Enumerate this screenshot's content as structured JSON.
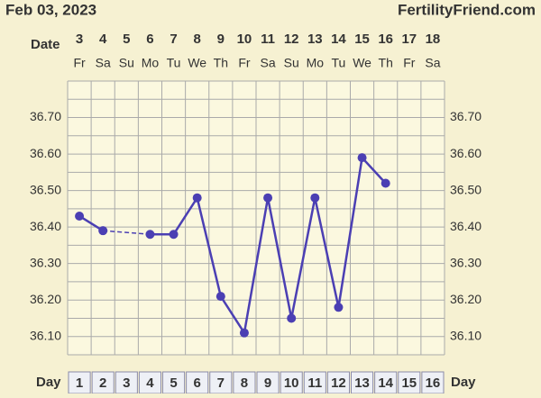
{
  "chart_data": {
    "type": "line",
    "title": "Feb 03, 2023",
    "site": "FertilityFriend.com",
    "date_label": "Date",
    "day_label": "Day",
    "dates": [
      "3",
      "4",
      "5",
      "6",
      "7",
      "8",
      "9",
      "10",
      "11",
      "12",
      "13",
      "14",
      "15",
      "16",
      "17",
      "18"
    ],
    "weekdays": [
      "Fr",
      "Sa",
      "Su",
      "Mo",
      "Tu",
      "We",
      "Th",
      "Fr",
      "Sa",
      "Su",
      "Mo",
      "Tu",
      "We",
      "Th",
      "Fr",
      "Sa"
    ],
    "categories": [
      "1",
      "2",
      "3",
      "4",
      "5",
      "6",
      "7",
      "8",
      "9",
      "10",
      "11",
      "12",
      "13",
      "14",
      "15",
      "16"
    ],
    "series": [
      {
        "color": "#4b3fb3",
        "values": [
          36.43,
          36.39,
          null,
          36.38,
          36.38,
          36.48,
          36.21,
          36.11,
          36.48,
          36.15,
          36.48,
          36.18,
          36.59,
          36.52,
          null,
          null
        ]
      }
    ],
    "ylim": [
      36.05,
      36.8
    ],
    "yticks": [
      {
        "value": 36.1,
        "label": "36.10"
      },
      {
        "value": 36.2,
        "label": "36.20"
      },
      {
        "value": 36.3,
        "label": "36.30"
      },
      {
        "value": 36.4,
        "label": "36.40"
      },
      {
        "value": 36.5,
        "label": "36.50"
      },
      {
        "value": 36.6,
        "label": "36.60"
      },
      {
        "value": 36.7,
        "label": "36.70"
      }
    ],
    "ygrid": [
      36.05,
      36.1,
      36.15,
      36.2,
      36.25,
      36.3,
      36.35,
      36.4,
      36.45,
      36.5,
      36.55,
      36.6,
      36.65,
      36.7,
      36.75,
      36.8
    ],
    "grid": true
  }
}
